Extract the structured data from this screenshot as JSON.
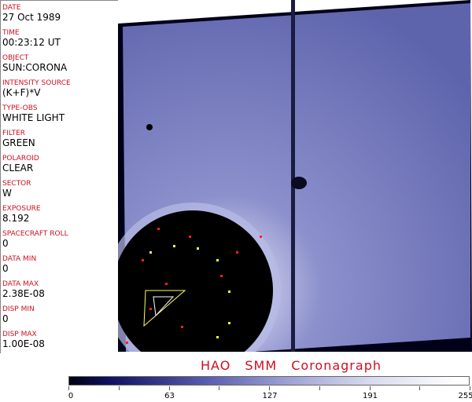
{
  "fields": [
    {
      "label": "DATE",
      "value": "27 Oct 1989"
    },
    {
      "label": "TIME",
      "value": "00:23:12 UT"
    },
    {
      "label": "OBJECT",
      "value": "SUN:CORONA"
    },
    {
      "label": "INTENSITY SOURCE",
      "value": "(K+F)*V"
    },
    {
      "label": "TYPE-OBS",
      "value": "WHITE LIGHT"
    },
    {
      "label": "FILTER",
      "value": "GREEN"
    },
    {
      "label": "POLAROID",
      "value": "CLEAR"
    },
    {
      "label": "SECTOR",
      "value": "W"
    },
    {
      "label": "EXPOSURE",
      "value": "8.192"
    },
    {
      "label": "SPACECRAFT ROLL",
      "value": "0"
    },
    {
      "label": "DATA MIN",
      "value": "0"
    },
    {
      "label": "DATA MAX",
      "value": "2.38E-08"
    },
    {
      "label": "DISP MIN",
      "value": "0"
    },
    {
      "label": "DISP MAX",
      "value": "1.00E-08"
    }
  ],
  "title": "HAO   SMM Coronagraph",
  "colorbar": {
    "ticks": [
      "0",
      "63",
      "127",
      "191",
      "255"
    ],
    "min_color": "#000010",
    "max_color": "#ffffff"
  },
  "colors": {
    "label": "#cc1020",
    "image_field": "#6a6fb4"
  }
}
